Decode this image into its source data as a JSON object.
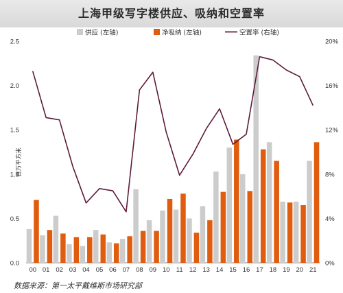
{
  "title": "上海甲级写字楼供应、吸纳和空置率",
  "source": "数据来源：第一太平戴维斯市场研究部",
  "chart_data": {
    "type": "bar",
    "categories": [
      "00",
      "01",
      "02",
      "03",
      "04",
      "05",
      "06",
      "07",
      "08",
      "09",
      "10",
      "11",
      "12",
      "13",
      "14",
      "15",
      "16",
      "17",
      "18",
      "19",
      "20",
      "21"
    ],
    "series": [
      {
        "name": "供应 (左轴)",
        "kind": "bar",
        "axis": "left",
        "color": "#cccccc",
        "values": [
          0.38,
          0.31,
          0.53,
          0.21,
          0.19,
          0.37,
          0.23,
          0.27,
          0.83,
          0.48,
          0.59,
          0.6,
          0.5,
          0.64,
          1.03,
          1.3,
          1.0,
          2.34,
          1.36,
          0.69,
          0.69,
          1.15
        ]
      },
      {
        "name": "净吸纳 (左轴)",
        "kind": "bar",
        "axis": "left",
        "color": "#e05c0e",
        "values": [
          0.71,
          0.37,
          0.33,
          0.29,
          0.29,
          0.32,
          0.22,
          0.3,
          0.36,
          0.36,
          0.72,
          0.78,
          0.34,
          0.48,
          0.8,
          1.39,
          0.81,
          1.28,
          1.15,
          0.68,
          0.65,
          1.36
        ]
      },
      {
        "name": "空置率 (右轴)",
        "kind": "line",
        "axis": "right",
        "color": "#5c1a3a",
        "values": [
          17.3,
          13.1,
          12.9,
          8.7,
          5.4,
          6.7,
          6.5,
          4.6,
          15.6,
          17.2,
          11.8,
          7.9,
          9.8,
          12.1,
          13.9,
          10.7,
          11.6,
          18.6,
          18.3,
          17.4,
          16.8,
          14.2
        ]
      }
    ],
    "ylabel": "百万平方米",
    "ylim": [
      0,
      2.5
    ],
    "yticks": [
      "0.0",
      "0.5",
      "1.0",
      "1.5",
      "2.0",
      "2.5"
    ],
    "y2lim": [
      0,
      20
    ],
    "y2ticks": [
      "0%",
      "4%",
      "8%",
      "12%",
      "16%",
      "20%"
    ],
    "legend_position": "top",
    "grid": false
  }
}
